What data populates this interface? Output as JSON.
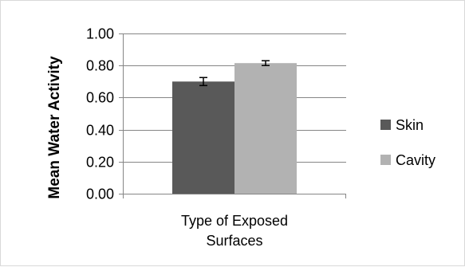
{
  "chart_data": {
    "type": "bar",
    "categories": [
      "Type of Exposed Surfaces"
    ],
    "category_label_lines": [
      "Type of Exposed",
      "Surfaces"
    ],
    "series": [
      {
        "name": "Skin",
        "values": [
          0.7
        ],
        "error": [
          0.025
        ],
        "color": "#595959"
      },
      {
        "name": "Cavity",
        "values": [
          0.815
        ],
        "error": [
          0.015
        ],
        "color": "#b2b2b2"
      }
    ],
    "ylabel": "Mean Water Activity",
    "xlabel": "",
    "title": "",
    "ylim": [
      0,
      1
    ],
    "yticks": [
      0,
      0.2,
      0.4,
      0.6,
      0.8,
      1.0
    ],
    "ytick_labels": [
      "0.00",
      "0.20",
      "0.40",
      "0.60",
      "0.80",
      "1.00"
    ],
    "grid": true,
    "legend_position": "right",
    "error_bars": true
  }
}
